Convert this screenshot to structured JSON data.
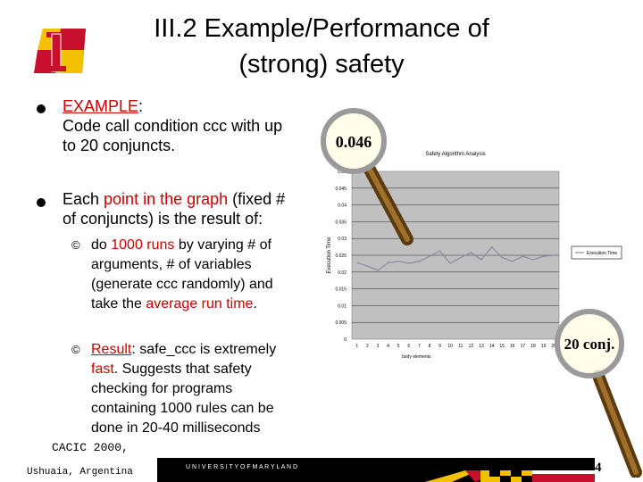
{
  "slide": {
    "title_line1": "III.2 Example/Performance of",
    "title_line2": "(strong) safety"
  },
  "bullets": [
    {
      "head": "EXAMPLE",
      "head_suffix": ":",
      "line2": "Code call condition ccc with up",
      "line3": "to 20 conjuncts."
    },
    {
      "l1_a": "Each ",
      "l1_b": "point in the graph",
      "l1_c": " (fixed #",
      "line2": "of conjuncts) is the result of:"
    }
  ],
  "sub_bullets": [
    {
      "mark": "©",
      "l1_a": "do ",
      "l1_b": "1000 runs",
      "l1_c": " by varying # of",
      "line2": "arguments, # of variables",
      "line3": "(generate ccc randomly) and",
      "l4_a": "take the ",
      "l4_b": "average run time",
      "l4_c": "."
    },
    {
      "mark": "©",
      "l1_a": "Result",
      "l1_b": ": safe_ccc is extremely",
      "l2_a": "fast",
      "l2_b": ". Suggests that safety",
      "line3": "checking for programs",
      "line4": "containing 1000 rules can be",
      "line5": "done in 20-40 milliseconds"
    }
  ],
  "chart_data": {
    "type": "line",
    "title": "Safety Algorithm Analysis",
    "xlabel": "body elements",
    "ylabel": "Execution Time",
    "x": [
      1,
      2,
      3,
      4,
      5,
      6,
      7,
      8,
      9,
      10,
      11,
      12,
      13,
      14,
      15,
      16,
      17,
      18,
      19,
      20
    ],
    "series": [
      {
        "name": "Execution Time",
        "values": [
          0.0228,
          0.0218,
          0.0205,
          0.0228,
          0.0232,
          0.0226,
          0.0232,
          0.0247,
          0.0263,
          0.0226,
          0.0243,
          0.0258,
          0.0237,
          0.0275,
          0.0243,
          0.0232,
          0.0247,
          0.0237,
          0.0247,
          0.025
        ]
      }
    ],
    "yticks": [
      "0",
      "0.005",
      "0.01",
      "0.015",
      "0.02",
      "0.025",
      "0.03",
      "0.035",
      "0.04",
      "0.045",
      "0.05"
    ],
    "ylim": [
      0,
      0.05
    ],
    "grid": true,
    "legend": "right",
    "background": "#c0c0c0",
    "line_color": "#8a8aa0"
  },
  "magnifiers": {
    "top_label": "0.046",
    "bottom_label": "20 conj."
  },
  "footer": {
    "conf": "CACIC 2000,",
    "place": "Ushuaia, Argentina",
    "banner_text": "U N I V E R S I T Y   O F   M A R Y L A N D",
    "page": "4"
  },
  "colors": {
    "accent_red": "#cc0000",
    "umd_gold": "#f2c200",
    "umd_red": "#c8102e"
  }
}
